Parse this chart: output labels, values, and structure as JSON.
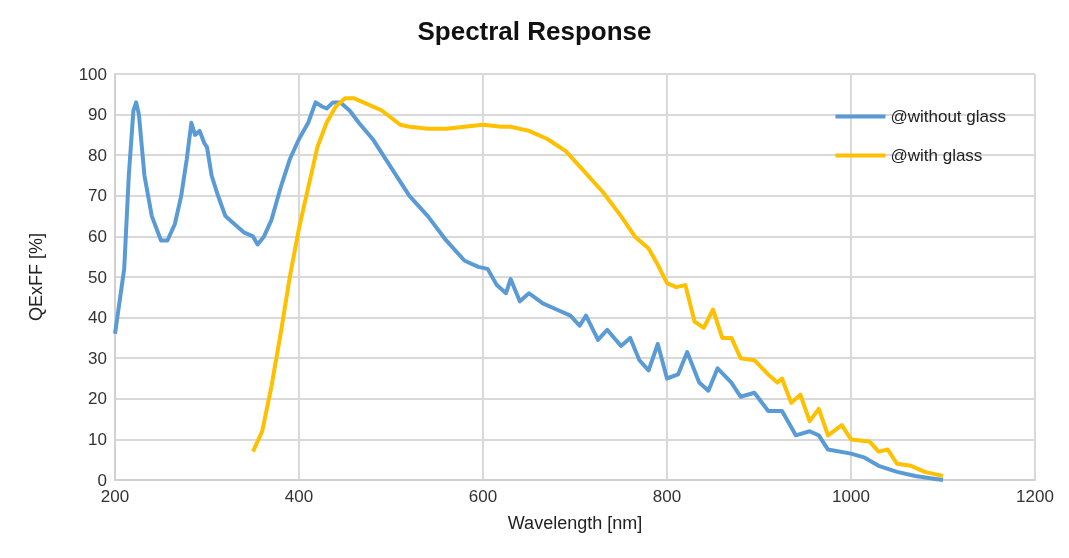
{
  "chart_data": {
    "type": "line",
    "title": "Spectral Response",
    "xlabel": "Wavelength [nm]",
    "ylabel": "QExFF [%]",
    "xlim": [
      200,
      1200
    ],
    "xticks": [
      200,
      400,
      600,
      800,
      1000,
      1200
    ],
    "ylim": [
      0,
      100
    ],
    "yticks": [
      0,
      10,
      20,
      30,
      40,
      50,
      60,
      70,
      80,
      90,
      100
    ],
    "grid": true,
    "legend": "top right",
    "marker": "none",
    "line_style": "solid",
    "series": [
      {
        "name": "@without glass",
        "color": "#5b9bd5",
        "x": [
          200,
          210,
          215,
          220,
          223,
          226,
          232,
          240,
          250,
          257,
          265,
          272,
          278,
          283,
          287,
          292,
          297,
          300,
          305,
          312,
          320,
          330,
          340,
          350,
          355,
          362,
          370,
          380,
          390,
          400,
          410,
          418,
          425,
          430,
          437,
          445,
          455,
          465,
          480,
          500,
          520,
          540,
          560,
          580,
          595,
          605,
          615,
          625,
          630,
          640,
          650,
          665,
          680,
          695,
          705,
          712,
          725,
          735,
          750,
          760,
          770,
          780,
          790,
          800,
          812,
          822,
          835,
          845,
          855,
          870,
          880,
          895,
          910,
          925,
          940,
          955,
          965,
          975,
          1000,
          1015,
          1030,
          1050,
          1070,
          1090,
          1100
        ],
        "values": [
          36,
          52,
          75,
          91,
          93,
          90,
          75,
          65,
          59,
          59,
          63,
          70,
          79,
          88,
          85,
          86,
          83,
          82,
          75,
          70,
          65,
          63,
          61,
          60,
          58,
          60,
          64,
          72,
          79,
          84,
          88,
          93,
          92,
          91.5,
          93,
          93,
          91,
          88,
          84,
          77,
          70,
          65,
          59,
          54,
          52.5,
          52,
          48,
          46,
          49.5,
          44,
          46,
          43.5,
          42,
          40.5,
          38,
          40.5,
          34.5,
          37,
          33,
          35,
          29.5,
          27,
          33.5,
          25,
          26,
          31.5,
          24,
          22,
          27.5,
          24,
          20.5,
          21.5,
          17,
          17,
          11,
          12,
          11,
          7.5,
          6.5,
          5.5,
          3.5,
          2,
          1,
          0.3,
          0
        ]
      },
      {
        "name": "@with glass",
        "color": "#ffc000",
        "x": [
          350,
          360,
          370,
          380,
          390,
          400,
          410,
          420,
          430,
          440,
          450,
          460,
          470,
          490,
          510,
          520,
          540,
          560,
          580,
          600,
          620,
          630,
          650,
          670,
          690,
          710,
          730,
          750,
          765,
          780,
          790,
          800,
          810,
          820,
          830,
          840,
          850,
          860,
          870,
          880,
          895,
          910,
          920,
          925,
          935,
          945,
          955,
          965,
          975,
          990,
          1000,
          1020,
          1030,
          1040,
          1050,
          1065,
          1080,
          1090,
          1100
        ],
        "values": [
          7,
          12,
          23,
          36,
          50,
          62,
          72,
          82,
          88,
          92,
          94,
          94,
          93,
          91,
          87.5,
          87,
          86.5,
          86.5,
          87,
          87.5,
          87,
          87,
          86,
          84,
          81,
          76,
          71,
          65,
          60,
          57,
          53,
          48.5,
          47.5,
          48,
          39,
          37.5,
          42,
          35,
          35,
          30,
          29.5,
          26,
          24,
          25,
          19,
          21,
          14.5,
          17.5,
          11,
          13.5,
          10,
          9.5,
          7,
          7.5,
          4,
          3.5,
          2,
          1.5,
          1
        ]
      }
    ]
  }
}
